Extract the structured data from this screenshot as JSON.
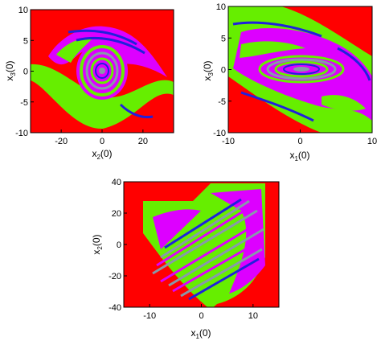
{
  "colors": {
    "background_basin": "#ff0000",
    "basin_green": "#66ee00",
    "basin_magenta": "#dd00ff",
    "basin_blue": "#2020dd",
    "basin_gray": "#8899aa",
    "basin_yellow": "#ffee00",
    "frame": "#000000"
  },
  "chart_data": [
    {
      "type": "heatmap",
      "title": "",
      "xlabel": {
        "base": "x",
        "sub": "2",
        "suffix": "(0)"
      },
      "ylabel": {
        "base": "x",
        "sub": "3",
        "suffix": "(0)"
      },
      "xlim": [
        -35,
        35
      ],
      "ylim": [
        -10,
        10
      ],
      "xticks": [
        -20,
        0,
        20
      ],
      "yticks": [
        -10,
        -5,
        0,
        5,
        10
      ],
      "xtick_labels": [
        "-20",
        "0",
        "20"
      ],
      "ytick_labels": [
        "-10",
        "-5",
        "0",
        "5",
        "10"
      ],
      "regions": [
        "red exterior basin",
        "green basin",
        "magenta basin",
        "spiral core centered at (0, 0)"
      ],
      "grid": false,
      "legend": "none"
    },
    {
      "type": "heatmap",
      "title": "",
      "xlabel": {
        "base": "x",
        "sub": "1",
        "suffix": "(0)"
      },
      "ylabel": {
        "base": "x",
        "sub": "3",
        "suffix": "(0)"
      },
      "xlim": [
        -10,
        10
      ],
      "ylim": [
        -10,
        10
      ],
      "xticks": [
        -10,
        0,
        10
      ],
      "yticks": [
        -10,
        -5,
        0,
        5,
        10
      ],
      "xtick_labels": [
        "-10",
        "0",
        "10"
      ],
      "ytick_labels": [
        "-10",
        "-5",
        "0",
        "5",
        "10"
      ],
      "regions": [
        "red exterior basin",
        "green basin",
        "magenta basin",
        "elliptical spiral centered near (-1, 1)"
      ],
      "grid": false,
      "legend": "none"
    },
    {
      "type": "heatmap",
      "title": "",
      "xlabel": {
        "base": "x",
        "sub": "1",
        "suffix": "(0)"
      },
      "ylabel": {
        "base": "x",
        "sub": "2",
        "suffix": "(0)"
      },
      "xlim": [
        -15,
        15
      ],
      "ylim": [
        -40,
        40
      ],
      "xticks": [
        -10,
        0,
        10
      ],
      "yticks": [
        -40,
        -20,
        0,
        20,
        40
      ],
      "xtick_labels": [
        "-10",
        "0",
        "10"
      ],
      "ytick_labels": [
        "-40",
        "-20",
        "0",
        "20",
        "40"
      ],
      "regions": [
        "red exterior basin",
        "green basin",
        "magenta basin",
        "tilted striped band through origin"
      ],
      "grid": false,
      "legend": "none"
    }
  ]
}
